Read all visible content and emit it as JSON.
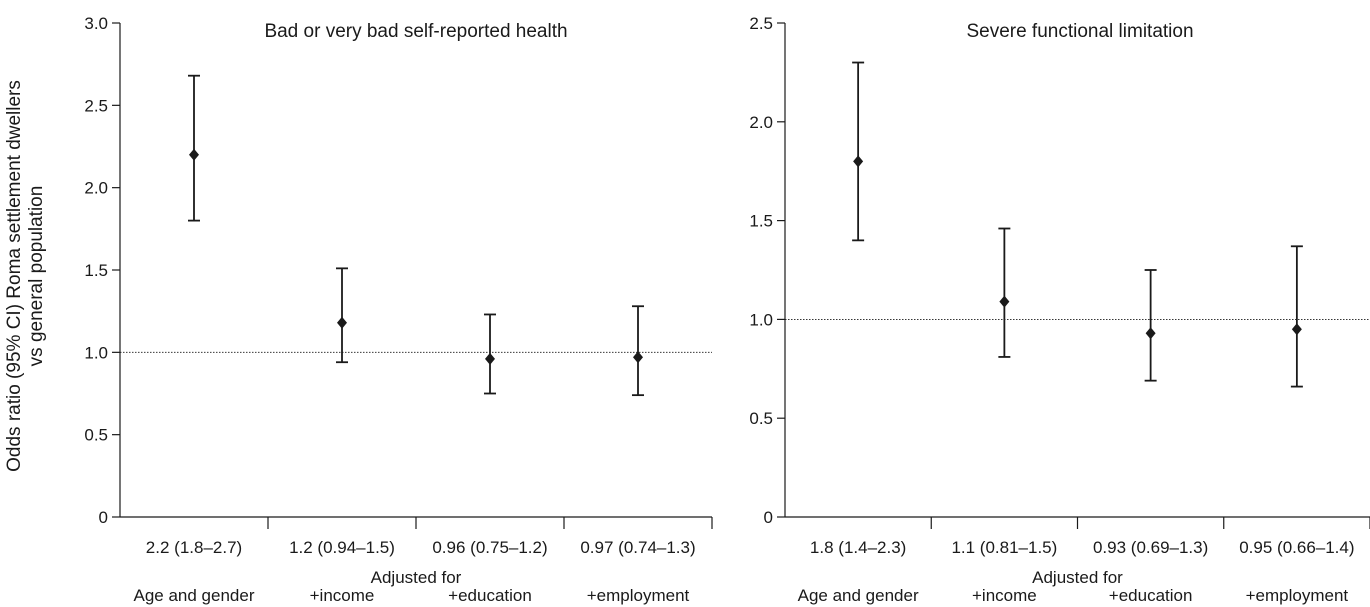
{
  "shared": {
    "ylabel_line1": "Odds ratio (95% CI) Roma settlement dwellers",
    "ylabel_line2": "vs general population",
    "xlabel_title": "Adjusted for",
    "adjustments": [
      "Age and gender",
      "+income",
      "+education",
      "+employment"
    ]
  },
  "chart_data": [
    {
      "type": "scatter",
      "title": "Bad or very bad self-reported health",
      "reference_line": 1.0,
      "ylim": [
        0,
        3.0
      ],
      "yticks": [
        0,
        0.5,
        1.0,
        1.5,
        2.0,
        2.5,
        3.0
      ],
      "ytick_labels": [
        "0",
        "0.5",
        "1.0",
        "1.5",
        "2.0",
        "2.5",
        "3.0"
      ],
      "categories": [
        "2.2 (1.8–2.7)",
        "1.2 (0.94–1.5)",
        "0.96 (0.75–1.2)",
        "0.97 (0.74–1.3)"
      ],
      "points": [
        {
          "or": 2.2,
          "lo": 1.8,
          "hi": 2.68
        },
        {
          "or": 1.18,
          "lo": 0.94,
          "hi": 1.51
        },
        {
          "or": 0.96,
          "lo": 0.75,
          "hi": 1.23
        },
        {
          "or": 0.97,
          "lo": 0.74,
          "hi": 1.28
        }
      ]
    },
    {
      "type": "scatter",
      "title": "Severe functional limitation",
      "reference_line": 1.0,
      "ylim": [
        0,
        2.5
      ],
      "yticks": [
        0,
        0.5,
        1.0,
        1.5,
        2.0,
        2.5
      ],
      "ytick_labels": [
        "0",
        "0.5",
        "1.0",
        "1.5",
        "2.0",
        "2.5"
      ],
      "categories": [
        "1.8 (1.4–2.3)",
        "1.1 (0.81–1.5)",
        "0.93 (0.69–1.3)",
        "0.95 (0.66–1.4)"
      ],
      "points": [
        {
          "or": 1.8,
          "lo": 1.4,
          "hi": 2.3
        },
        {
          "or": 1.09,
          "lo": 0.81,
          "hi": 1.46
        },
        {
          "or": 0.93,
          "lo": 0.69,
          "hi": 1.25
        },
        {
          "or": 0.95,
          "lo": 0.66,
          "hi": 1.37
        }
      ]
    }
  ]
}
